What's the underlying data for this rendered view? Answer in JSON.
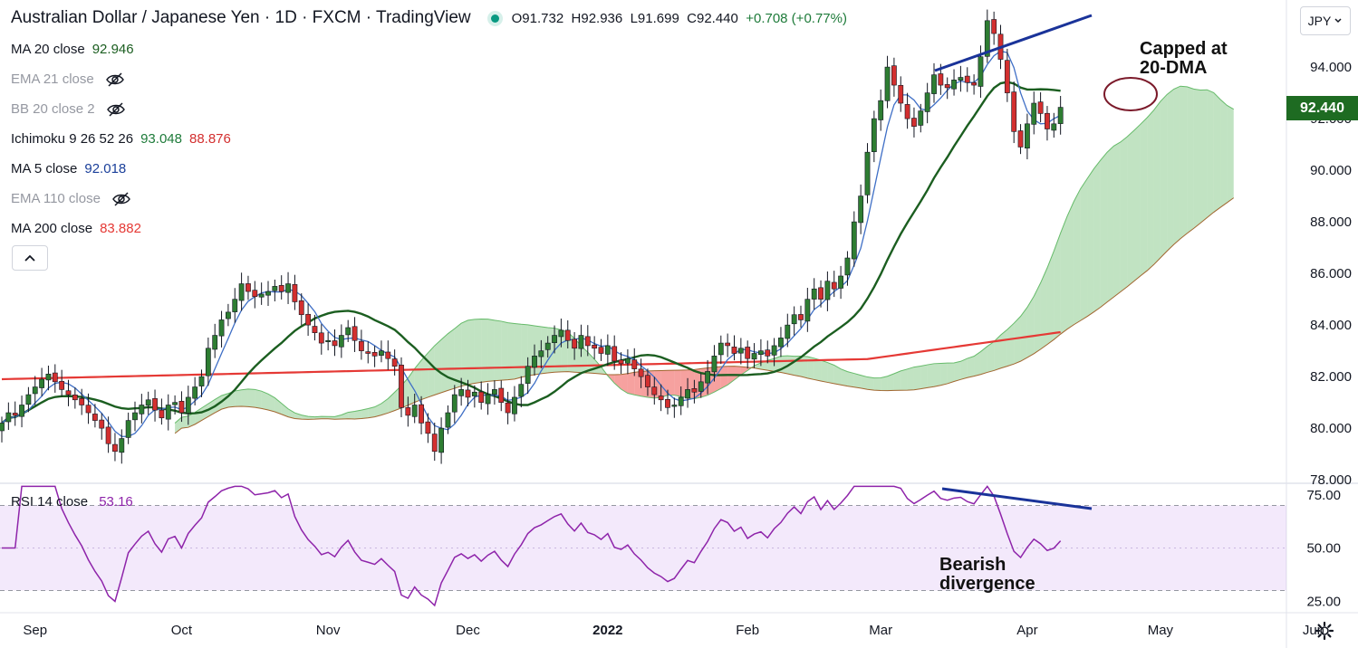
{
  "header": {
    "symbol_title": "Australian Dollar / Japanese Yen · 1D · FXCM · TradingView",
    "open": "O91.732",
    "high": "H92.936",
    "low": "L91.699",
    "close": "C92.440",
    "change": "+0.708 (+0.77%)"
  },
  "indicators": [
    {
      "name": "MA 20 close",
      "value": "92.946",
      "color": "#1b5e20",
      "hidden": false
    },
    {
      "name": "EMA 21 close",
      "value": "",
      "color": "#9598a1",
      "hidden": true
    },
    {
      "name": "BB 20 close 2",
      "value": "",
      "color": "#9598a1",
      "hidden": true
    },
    {
      "name": "Ichimoku 9 26 52 26",
      "value": "93.048",
      "value2": "88.876",
      "color": "#1e7b3a",
      "color2": "#d32f2f",
      "hidden": false
    },
    {
      "name": "MA 5 close",
      "value": "92.018",
      "color": "#1a3f9a",
      "hidden": false
    },
    {
      "name": "EMA 110 close",
      "value": "",
      "color": "#9598a1",
      "hidden": true
    },
    {
      "name": "MA 200 close",
      "value": "83.882",
      "color": "#e53935",
      "hidden": false
    }
  ],
  "rsi": {
    "name": "RSI 14 close",
    "value": "53.16",
    "color": "#8e24aa"
  },
  "currency_button": "JPY",
  "last_price_label": "92.440",
  "annotations": {
    "capped_line1": "Capped at",
    "capped_line2": "20-DMA",
    "bearish_line1": "Bearish",
    "bearish_line2": "divergence"
  },
  "icons": [
    "eye-off-icon",
    "chevron-up-icon",
    "chevron-down-icon",
    "gear-icon"
  ],
  "colors": {
    "up": "#2e7d32",
    "down": "#d32f2f",
    "ma20": "#1b5e20",
    "ma5": "#3f6fc6",
    "ma200": "#e53935",
    "rsi": "#8e24aa",
    "trend": "#1a3399"
  },
  "chart_data": {
    "type": "candlestick",
    "x_ticks": [
      "Sep",
      "Oct",
      "Nov",
      "Dec",
      "2022",
      "Feb",
      "Mar",
      "Apr",
      "May",
      "Jun"
    ],
    "y_ticks": [
      "94.000",
      "92.000",
      "90.000",
      "88.000",
      "86.000",
      "84.000",
      "82.000",
      "80.000",
      "78.000"
    ],
    "ylim": [
      77.9,
      96.6
    ],
    "rsi_ticks": [
      "75.00",
      "50.00",
      "25.00"
    ],
    "rsi_ylim": [
      20,
      80
    ],
    "rsi_bands": [
      30,
      70
    ],
    "closes": [
      80.2,
      80.6,
      80.5,
      80.9,
      81.3,
      81.6,
      81.9,
      82.1,
      81.8,
      81.5,
      81.3,
      81.1,
      80.9,
      80.6,
      80.3,
      80.0,
      79.4,
      79.1,
      79.6,
      80.3,
      80.6,
      80.9,
      81.1,
      80.7,
      80.4,
      80.9,
      81.0,
      80.6,
      81.2,
      81.6,
      82.0,
      83.1,
      83.6,
      84.2,
      84.5,
      85.0,
      85.6,
      85.3,
      85.1,
      85.2,
      85.3,
      85.5,
      85.3,
      85.6,
      84.9,
      84.4,
      84.0,
      83.7,
      83.3,
      83.4,
      83.2,
      83.6,
      83.9,
      83.4,
      83.0,
      82.9,
      82.8,
      83.0,
      82.7,
      82.4,
      80.8,
      80.5,
      80.9,
      80.2,
      79.8,
      79.1,
      80.0,
      80.6,
      81.3,
      81.5,
      81.2,
      81.4,
      81.0,
      81.3,
      81.5,
      81.0,
      80.6,
      81.2,
      81.7,
      82.4,
      82.8,
      83.0,
      83.3,
      83.6,
      83.8,
      83.4,
      83.1,
      83.6,
      83.2,
      83.1,
      82.9,
      83.2,
      82.6,
      82.5,
      82.7,
      82.3,
      82.0,
      81.6,
      81.3,
      81.1,
      80.8,
      80.9,
      81.2,
      81.5,
      81.4,
      81.8,
      82.2,
      82.8,
      83.3,
      83.2,
      82.9,
      83.1,
      82.7,
      82.9,
      83.0,
      82.8,
      83.2,
      83.5,
      84.0,
      84.4,
      84.2,
      85.0,
      85.4,
      85.0,
      85.7,
      85.4,
      85.9,
      86.6,
      88.0,
      89.0,
      90.7,
      92.0,
      92.7,
      94.0,
      93.3,
      92.6,
      92.0,
      91.7,
      92.3,
      93.0,
      93.7,
      93.3,
      93.2,
      93.5,
      93.6,
      93.4,
      93.3,
      94.4,
      95.8,
      95.3,
      94.3,
      93.0,
      91.5,
      90.9,
      91.8,
      92.6,
      92.2,
      91.6,
      91.8,
      92.44
    ],
    "ma20_close": "92.946",
    "ma5_close": "92.018",
    "ma200_close": "83.882",
    "ichimoku_values": [
      "93.048",
      "88.876"
    ],
    "rsi_close": "53.16"
  }
}
